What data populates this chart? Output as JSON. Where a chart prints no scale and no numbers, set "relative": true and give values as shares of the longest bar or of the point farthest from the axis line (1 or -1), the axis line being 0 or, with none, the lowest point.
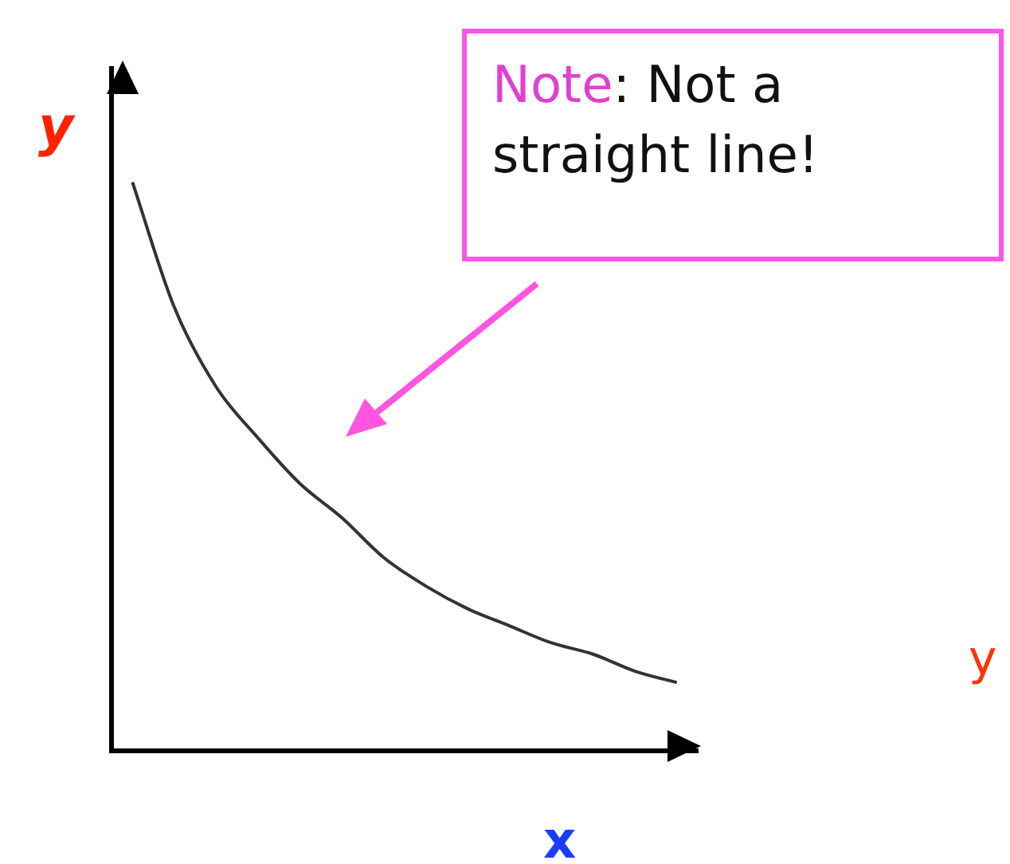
{
  "chart_data": {
    "type": "line",
    "relative": true,
    "xlabel": "x",
    "ylabel": "y",
    "categories": [
      null,
      null,
      null,
      null,
      null,
      null,
      null,
      null,
      null,
      null,
      null,
      null,
      null,
      null
    ],
    "series": [
      {
        "color": "#333333",
        "values": [
          1,
          0.78,
          0.64,
          0.55,
          0.47,
          0.41,
          0.34,
          0.29,
          0.25,
          0.22,
          0.19,
          0.17,
          0.14,
          0.12
        ]
      }
    ],
    "annotations": [
      "Note: Not a straight line!",
      "y"
    ],
    "grid": false,
    "legend": false
  }
}
